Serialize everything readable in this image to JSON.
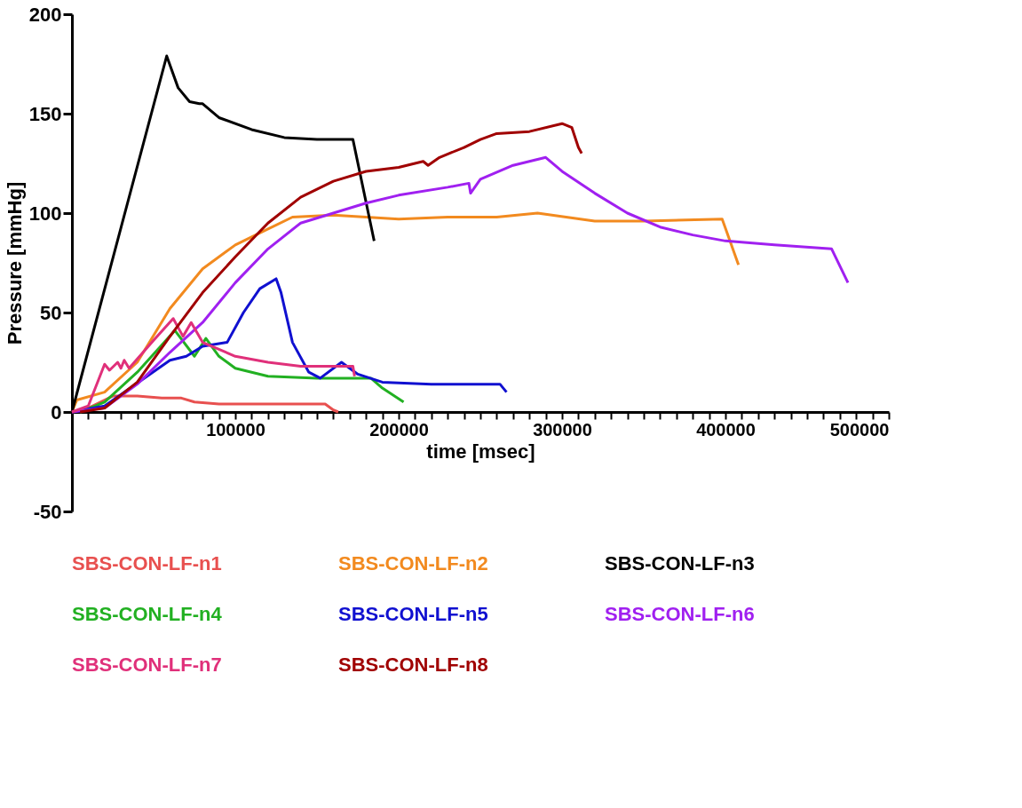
{
  "chart_data": {
    "type": "line",
    "xlabel": "time [msec]",
    "ylabel": "Pressure [mmHg]",
    "xlim": [
      0,
      500000
    ],
    "ylim": [
      -50,
      200
    ],
    "xticks": [
      {
        "value": 10000,
        "label": null
      },
      {
        "value": 20000,
        "label": null
      },
      {
        "value": 30000,
        "label": null
      },
      {
        "value": 40000,
        "label": null
      },
      {
        "value": 50000,
        "label": null
      },
      {
        "value": 60000,
        "label": null
      },
      {
        "value": 70000,
        "label": null
      },
      {
        "value": 80000,
        "label": null
      },
      {
        "value": 90000,
        "label": null
      },
      100000,
      {
        "value": 110000,
        "label": null
      },
      {
        "value": 120000,
        "label": null
      },
      {
        "value": 130000,
        "label": null
      },
      {
        "value": 140000,
        "label": null
      },
      {
        "value": 150000,
        "label": null
      },
      {
        "value": 160000,
        "label": null
      },
      {
        "value": 170000,
        "label": null
      },
      {
        "value": 180000,
        "label": null
      },
      {
        "value": 190000,
        "label": null
      },
      200000,
      {
        "value": 210000,
        "label": null
      },
      {
        "value": 220000,
        "label": null
      },
      {
        "value": 230000,
        "label": null
      },
      {
        "value": 240000,
        "label": null
      },
      {
        "value": 250000,
        "label": null
      },
      {
        "value": 260000,
        "label": null
      },
      {
        "value": 270000,
        "label": null
      },
      {
        "value": 280000,
        "label": null
      },
      {
        "value": 290000,
        "label": null
      },
      300000,
      {
        "value": 310000,
        "label": null
      },
      {
        "value": 320000,
        "label": null
      },
      {
        "value": 330000,
        "label": null
      },
      {
        "value": 340000,
        "label": null
      },
      {
        "value": 350000,
        "label": null
      },
      {
        "value": 360000,
        "label": null
      },
      {
        "value": 370000,
        "label": null
      },
      {
        "value": 380000,
        "label": null
      },
      {
        "value": 390000,
        "label": null
      },
      400000,
      {
        "value": 410000,
        "label": null
      },
      {
        "value": 420000,
        "label": null
      },
      {
        "value": 430000,
        "label": null
      },
      {
        "value": 440000,
        "label": null
      },
      {
        "value": 450000,
        "label": null
      },
      {
        "value": 460000,
        "label": null
      },
      {
        "value": 470000,
        "label": null
      },
      {
        "value": 480000,
        "label": null
      },
      {
        "value": 490000,
        "label": null
      },
      500000
    ],
    "yticks": [
      -50,
      0,
      50,
      100,
      150,
      200
    ],
    "grid": false,
    "legend": "bottom",
    "marker": "none",
    "line_style": "solid",
    "series": [
      {
        "name": "SBS-CON-LF-n1",
        "color": "#e8504f",
        "x": [
          0,
          10000,
          25000,
          40000,
          55000,
          67000,
          75000,
          90000,
          120000,
          155000,
          160000,
          163000
        ],
        "values": [
          0,
          2,
          8,
          8,
          7,
          7,
          5,
          4,
          4,
          4,
          1,
          0
        ]
      },
      {
        "name": "SBS-CON-LF-n2",
        "color": "#f28a1f",
        "x": [
          0,
          3000,
          20000,
          40000,
          60000,
          80000,
          100000,
          120000,
          135000,
          160000,
          200000,
          230000,
          260000,
          285000,
          320000,
          350000,
          398000,
          408000
        ],
        "values": [
          0,
          6,
          10,
          25,
          52,
          72,
          84,
          92,
          98,
          99,
          97,
          98,
          98,
          100,
          96,
          96,
          97,
          74
        ]
      },
      {
        "name": "SBS-CON-LF-n3",
        "color": "#000000",
        "x": [
          0,
          58000,
          65000,
          72000,
          78000,
          80000,
          90000,
          110000,
          130000,
          150000,
          172000,
          185000
        ],
        "values": [
          0,
          179,
          163,
          156,
          155,
          155,
          148,
          142,
          138,
          137,
          137,
          86
        ]
      },
      {
        "name": "SBS-CON-LF-n4",
        "color": "#22b022",
        "x": [
          5000,
          20000,
          40000,
          63000,
          75000,
          82000,
          90000,
          100000,
          120000,
          150000,
          183000,
          190000,
          203000
        ],
        "values": [
          0,
          5,
          20,
          41,
          28,
          37,
          28,
          22,
          18,
          17,
          17,
          12,
          5
        ]
      },
      {
        "name": "SBS-CON-LF-n5",
        "color": "#1010d0",
        "x": [
          0,
          20000,
          60000,
          70000,
          80000,
          95000,
          105000,
          115000,
          125000,
          128000,
          135000,
          145000,
          152000,
          165000,
          175000,
          190000,
          220000,
          262000,
          266000
        ],
        "values": [
          0,
          3,
          26,
          28,
          33,
          35,
          50,
          62,
          67,
          60,
          35,
          20,
          17,
          25,
          19,
          15,
          14,
          14,
          10
        ]
      },
      {
        "name": "SBS-CON-LF-n6",
        "color": "#a020f0",
        "x": [
          0,
          20000,
          40000,
          60000,
          80000,
          100000,
          120000,
          140000,
          160000,
          180000,
          200000,
          230000,
          243000,
          244000,
          250000,
          270000,
          290000,
          300000,
          320000,
          340000,
          360000,
          380000,
          400000,
          430000,
          465000,
          475000
        ],
        "values": [
          0,
          2,
          14,
          30,
          45,
          65,
          82,
          95,
          100,
          105,
          109,
          113,
          115,
          110,
          117,
          124,
          128,
          121,
          110,
          100,
          93,
          89,
          86,
          84,
          82,
          65
        ]
      },
      {
        "name": "SBS-CON-LF-n7",
        "color": "#e0307a",
        "x": [
          0,
          10000,
          20000,
          23000,
          28000,
          30000,
          32000,
          35000,
          50000,
          62000,
          68000,
          73000,
          80000,
          100000,
          120000,
          140000,
          172000,
          173000
        ],
        "values": [
          0,
          3,
          24,
          21,
          25,
          22,
          26,
          22,
          36,
          47,
          38,
          45,
          35,
          28,
          25,
          23,
          23,
          18
        ]
      },
      {
        "name": "SBS-CON-LF-n8",
        "color": "#a00000",
        "x": [
          5000,
          20000,
          40000,
          60000,
          80000,
          100000,
          120000,
          140000,
          160000,
          180000,
          200000,
          215000,
          218000,
          225000,
          240000,
          250000,
          260000,
          280000,
          300000,
          306000,
          310000,
          312000
        ],
        "values": [
          0,
          2,
          15,
          38,
          60,
          78,
          95,
          108,
          116,
          121,
          123,
          126,
          124,
          128,
          133,
          137,
          140,
          141,
          145,
          143,
          133,
          130
        ]
      }
    ]
  }
}
